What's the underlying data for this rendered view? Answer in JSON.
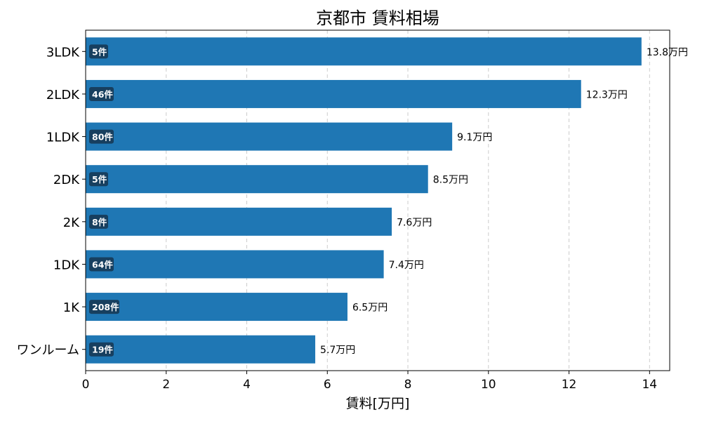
{
  "chart_data": {
    "type": "bar",
    "orientation": "horizontal",
    "title": "京都市 賃料相場",
    "xlabel": "賃料[万円]",
    "ylabel": "",
    "xlim": [
      0,
      14.5
    ],
    "xticks": [
      0,
      2,
      4,
      6,
      8,
      10,
      12,
      14
    ],
    "grid": "x-dashed",
    "categories": [
      "3LDK",
      "2LDK",
      "1LDK",
      "2DK",
      "2K",
      "1DK",
      "1K",
      "ワンルーム"
    ],
    "values": [
      13.8,
      12.3,
      9.1,
      8.5,
      7.6,
      7.4,
      6.5,
      5.7
    ],
    "value_labels": [
      "13.8万円",
      "12.3万円",
      "9.1万円",
      "8.5万円",
      "7.6万円",
      "7.4万円",
      "6.5万円",
      "5.7万円"
    ],
    "counts": [
      "5件",
      "46件",
      "80件",
      "5件",
      "8件",
      "64件",
      "208件",
      "19件"
    ],
    "colors": {
      "bar": "#1f77b4",
      "badge": "#173f5f",
      "badge_text": "#ffffff",
      "grid": "#cccccc",
      "axis": "#000000"
    }
  }
}
